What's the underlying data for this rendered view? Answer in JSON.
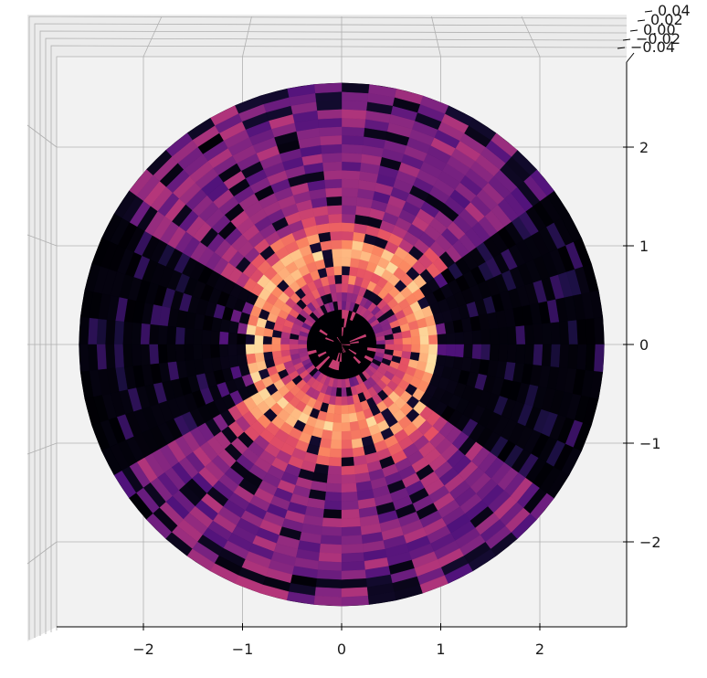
{
  "chart_data": {
    "type": "heatmap",
    "projection": "3d-surface-top-view",
    "title": "",
    "xlabel": "",
    "ylabel": "",
    "zlabel": "",
    "colormap": "magma",
    "xlim": [
      -2.9,
      2.9
    ],
    "ylim": [
      -2.9,
      2.9
    ],
    "zlim": [
      -0.04,
      0.04
    ],
    "x_ticks": [
      "−2",
      "−1",
      "0",
      "1",
      "2"
    ],
    "x_tick_values": [
      -2,
      -1,
      0,
      1,
      2
    ],
    "y_ticks": [
      "2",
      "1",
      "0",
      "−1",
      "−2"
    ],
    "y_tick_values": [
      2,
      1,
      0,
      -1,
      -2
    ],
    "z_ticks": [
      "0.04",
      "0.02",
      "0.00",
      "−0.02",
      "−0.04"
    ],
    "z_tick_values": [
      0.04,
      0.02,
      0.0,
      -0.02,
      -0.04
    ],
    "grid": true,
    "surface": {
      "shape": "disk",
      "r_range": [
        0,
        2.65
      ],
      "radial_bins": 30,
      "angular_bins": 60,
      "value_range": [
        0,
        1
      ],
      "description_values": {
        "inner_hole_radius": 0.35,
        "bright_ring_radius": 0.9,
        "dark_wedges_angles_deg": [
          [
            -30,
            30
          ],
          [
            150,
            210
          ]
        ]
      }
    },
    "colors": {
      "pane": "#f2f2f2",
      "grid": "#b0b0b0",
      "axis": "#000000",
      "background": "#ffffff"
    }
  }
}
